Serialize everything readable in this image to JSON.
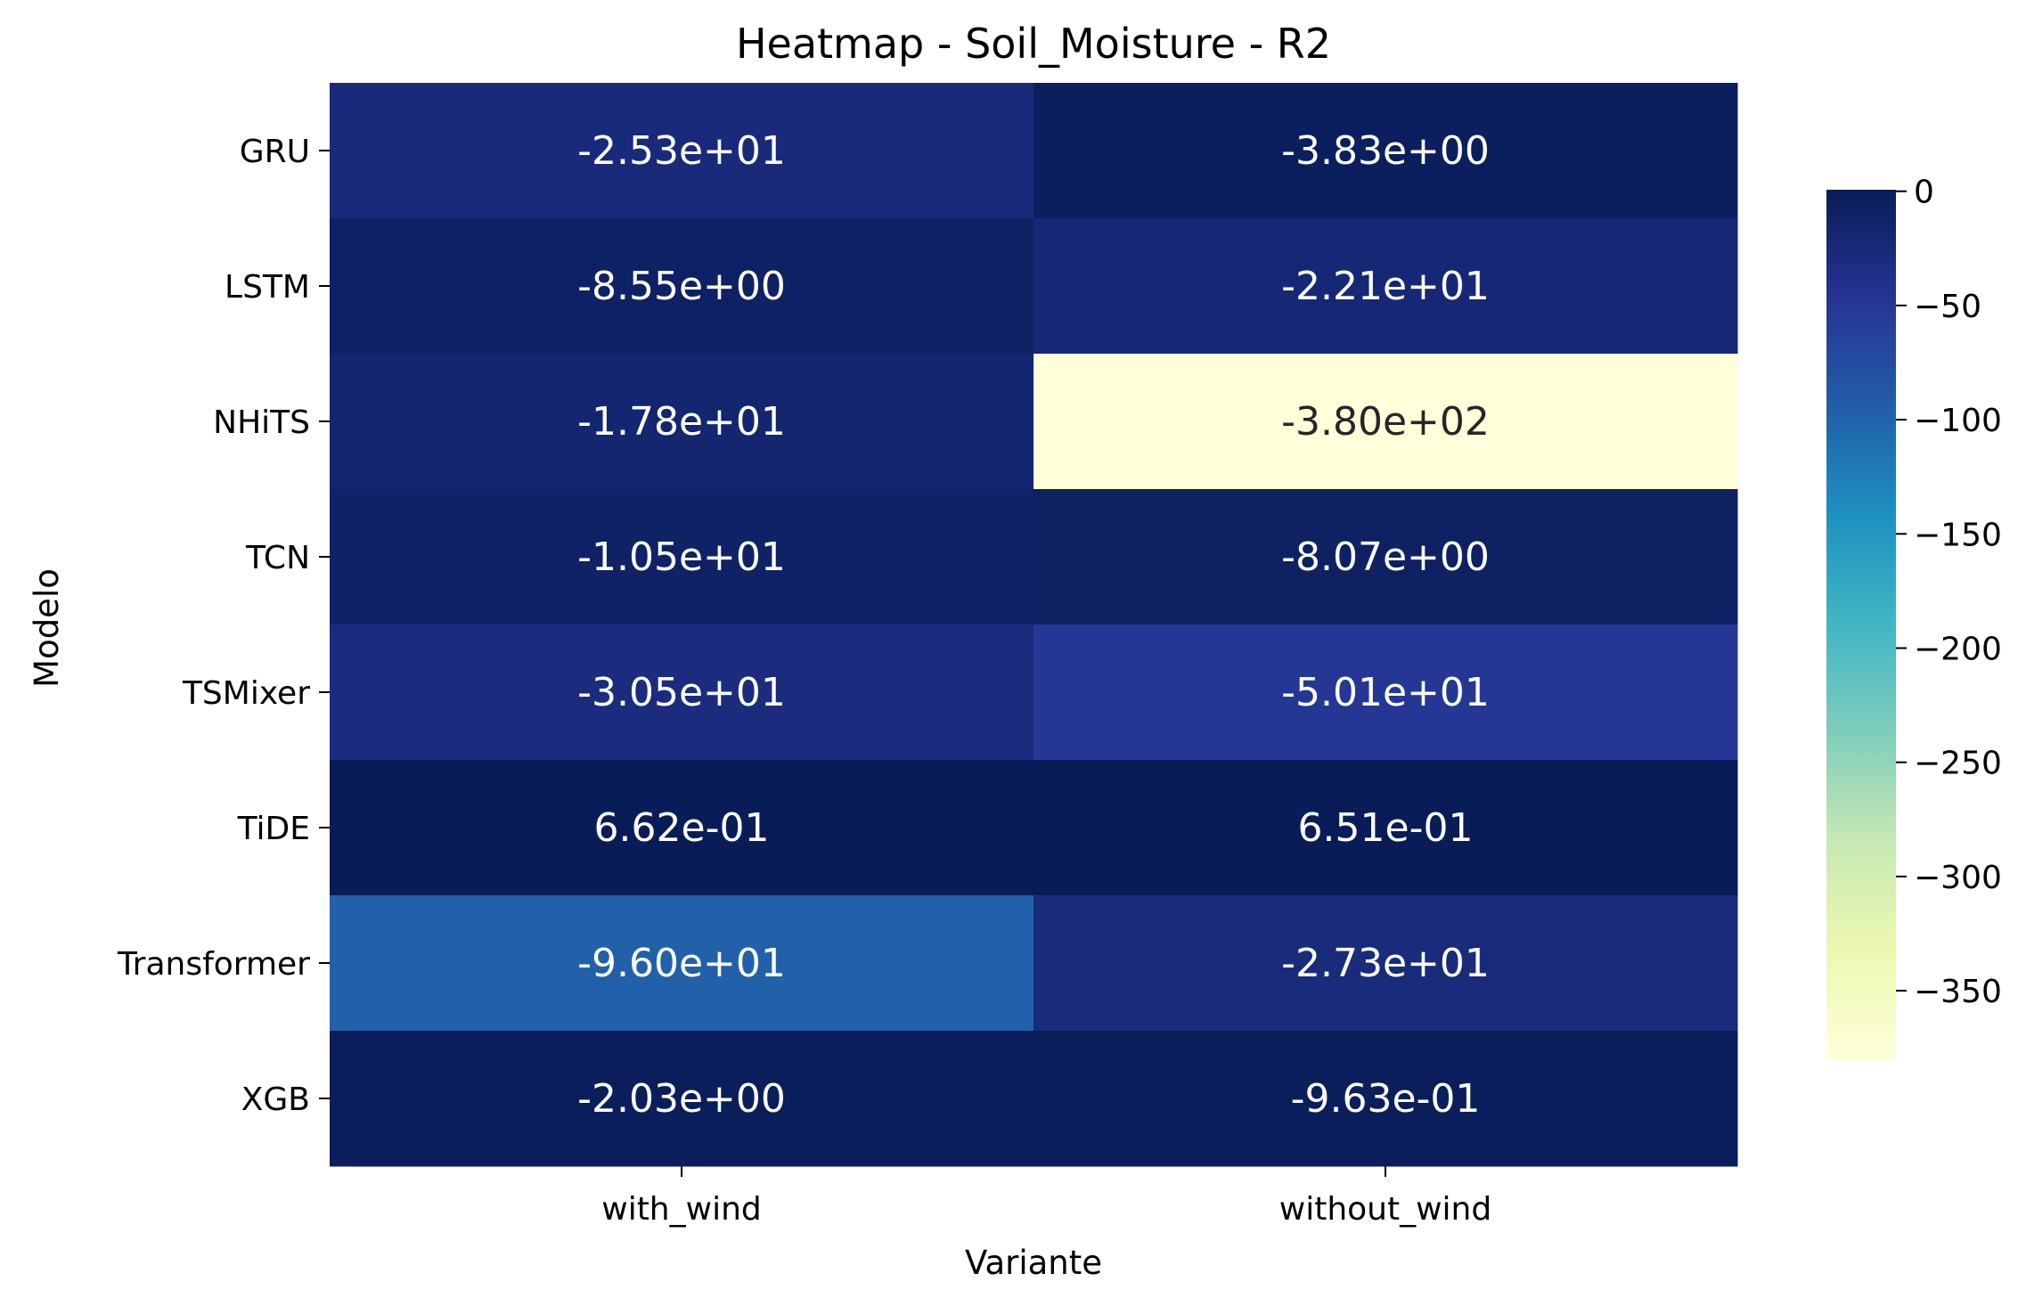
{
  "chart_data": {
    "type": "heatmap",
    "title": "Heatmap - Soil_Moisture - R2",
    "xlabel": "Variante",
    "ylabel": "Modelo",
    "rows": [
      "GRU",
      "LSTM",
      "NHiTS",
      "TCN",
      "TSMixer",
      "TiDE",
      "Transformer",
      "XGB"
    ],
    "columns": [
      "with_wind",
      "without_wind"
    ],
    "values": [
      [
        -25.3,
        -3.83
      ],
      [
        -8.55,
        -22.1
      ],
      [
        -17.8,
        -380.0
      ],
      [
        -10.5,
        -8.07
      ],
      [
        -30.5,
        -50.1
      ],
      [
        0.662,
        0.651
      ],
      [
        -96.0,
        -27.3
      ],
      [
        -2.03,
        -0.963
      ]
    ],
    "annotations": [
      [
        "-2.53e+01",
        "-3.83e+00"
      ],
      [
        "-8.55e+00",
        "-2.21e+01"
      ],
      [
        "-1.78e+01",
        "-3.80e+02"
      ],
      [
        "-1.05e+01",
        "-8.07e+00"
      ],
      [
        "-3.05e+01",
        "-5.01e+01"
      ],
      [
        "6.62e-01",
        "6.51e-01"
      ],
      [
        "-9.60e+01",
        "-2.73e+01"
      ],
      [
        "-2.03e+00",
        "-9.63e-01"
      ]
    ],
    "colorscale": "YlGnBu",
    "colorbar": {
      "min": -380.0,
      "max": 0.662,
      "ticks": [
        0,
        -50,
        -100,
        -150,
        -200,
        -250,
        -300,
        -350
      ],
      "tick_labels": [
        "0",
        "−50",
        "−100",
        "−150",
        "−200",
        "−250",
        "−300",
        "−350"
      ]
    }
  }
}
